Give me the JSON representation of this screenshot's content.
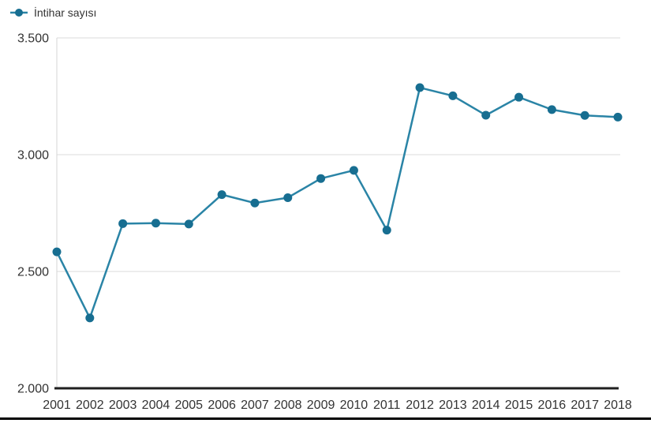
{
  "legend": {
    "label": "İntihar sayısı"
  },
  "colors": {
    "line": "#2a84a6",
    "marker": "#176e91",
    "grid": "#e2e2e2",
    "axis_line": "#dcdcdc",
    "baseline": "#1f1f1f",
    "text": "#333333",
    "bottom_border": "#000000"
  },
  "chart_data": {
    "type": "line",
    "title": "",
    "series_name": "İntihar sayısı",
    "categories": [
      "2001",
      "2002",
      "2003",
      "2004",
      "2005",
      "2006",
      "2007",
      "2008",
      "2009",
      "2010",
      "2011",
      "2012",
      "2013",
      "2014",
      "2015",
      "2016",
      "2017",
      "2018"
    ],
    "values": [
      2584,
      2301,
      2705,
      2707,
      2703,
      2829,
      2793,
      2816,
      2898,
      2933,
      2677,
      3287,
      3252,
      3169,
      3246,
      3193,
      3168,
      3161
    ],
    "xlabel": "",
    "ylabel": "",
    "ylim": [
      2000,
      3500
    ],
    "yticks": [
      3500,
      3000,
      2500,
      2000
    ],
    "ytick_labels": [
      "3.500",
      "3.000",
      "2.500",
      "2.000"
    ],
    "grid": true,
    "legend_position": "top-left",
    "marker": "circle"
  }
}
